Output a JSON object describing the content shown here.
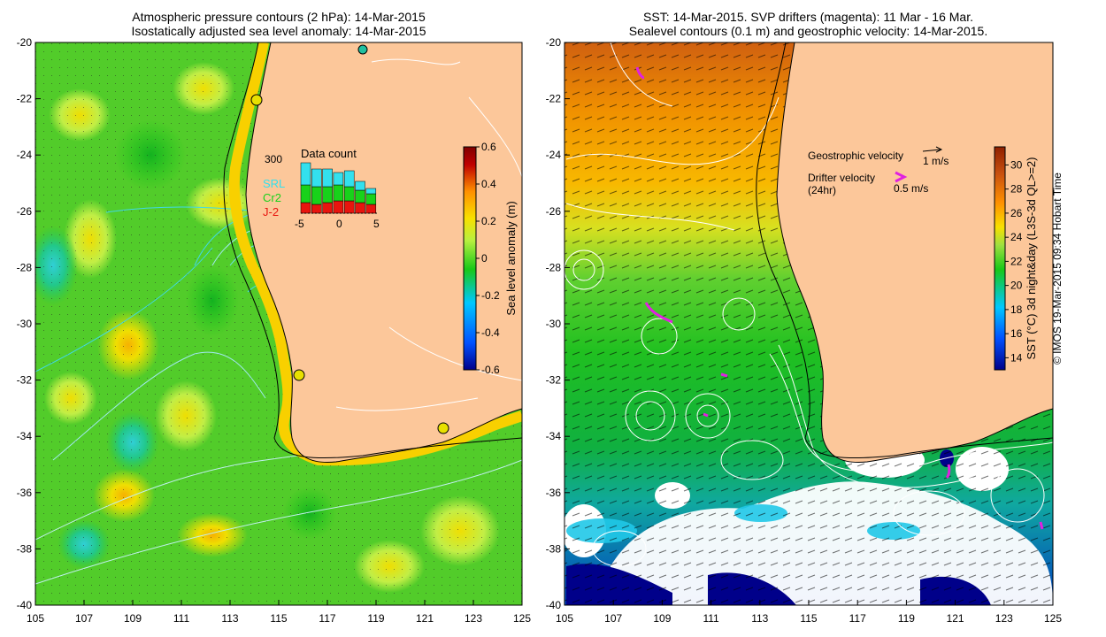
{
  "left_panel": {
    "title_line1": "Atmospheric pressure contours (2 hPa): 14-Mar-2015",
    "title_line2": "Isostatically adjusted sea level anomaly: 14-Mar-2015",
    "colorbar": {
      "label": "Sea level anomaly (m)",
      "min": -0.6,
      "max": 0.6,
      "ticks": [
        "0.6",
        "0.4",
        "0.2",
        "0",
        "-0.2",
        "-0.4",
        "-0.6"
      ]
    },
    "inset": {
      "title": "Data count",
      "ymax_label": "300",
      "xticks": [
        "-5",
        "0",
        "5"
      ],
      "legend": [
        {
          "name": "SRL",
          "color": "#33e0ee"
        },
        {
          "name": "Cr2",
          "color": "#18d21a"
        },
        {
          "name": "J-2",
          "color": "#e8140e"
        }
      ]
    }
  },
  "right_panel": {
    "title_line1": "SST: 14-Mar-2015. SVP drifters (magenta): 11 Mar - 16 Mar.",
    "title_line2": "Sealevel contours (0.1 m) and geostrophic velocity: 14-Mar-2015.",
    "legend": {
      "geostrophic_label": "Geostrophic velocity",
      "geostrophic_value": "1 m/s",
      "drifter_label_line1": "Drifter velocity",
      "drifter_label_line2": "(24hr)",
      "drifter_value": "0.5 m/s"
    },
    "colorbar": {
      "label": "SST (°C) 3d night&day (L3S-3d QL>=2)",
      "min": 13,
      "max": 31.5,
      "ticks": [
        "30",
        "28",
        "26",
        "24",
        "22",
        "20",
        "18",
        "16",
        "14"
      ]
    }
  },
  "axes": {
    "x_ticks": [
      "105",
      "107",
      "109",
      "111",
      "113",
      "115",
      "117",
      "119",
      "121",
      "123",
      "125"
    ],
    "y_ticks": [
      "-20",
      "-22",
      "-24",
      "-26",
      "-28",
      "-30",
      "-32",
      "-34",
      "-36",
      "-38",
      "-40"
    ],
    "lon_range": [
      105,
      125
    ],
    "lat_range": [
      -40,
      -20
    ]
  },
  "credit": "© IMOS 19-Mar-2015 09:34 Hobart Time",
  "colors": {
    "land": "#fcc79a",
    "drifter": "#e020e0",
    "sla_colormap": [
      "#00008a",
      "#0050ff",
      "#00c8ff",
      "#18c818",
      "#b8f040",
      "#f8e000",
      "#ff9000",
      "#c00000",
      "#800000"
    ],
    "sst_colormap": [
      "#00008a",
      "#0050ff",
      "#00c8ff",
      "#18c818",
      "#a0e040",
      "#f8e000",
      "#ff9000",
      "#c85010",
      "#902000"
    ]
  }
}
